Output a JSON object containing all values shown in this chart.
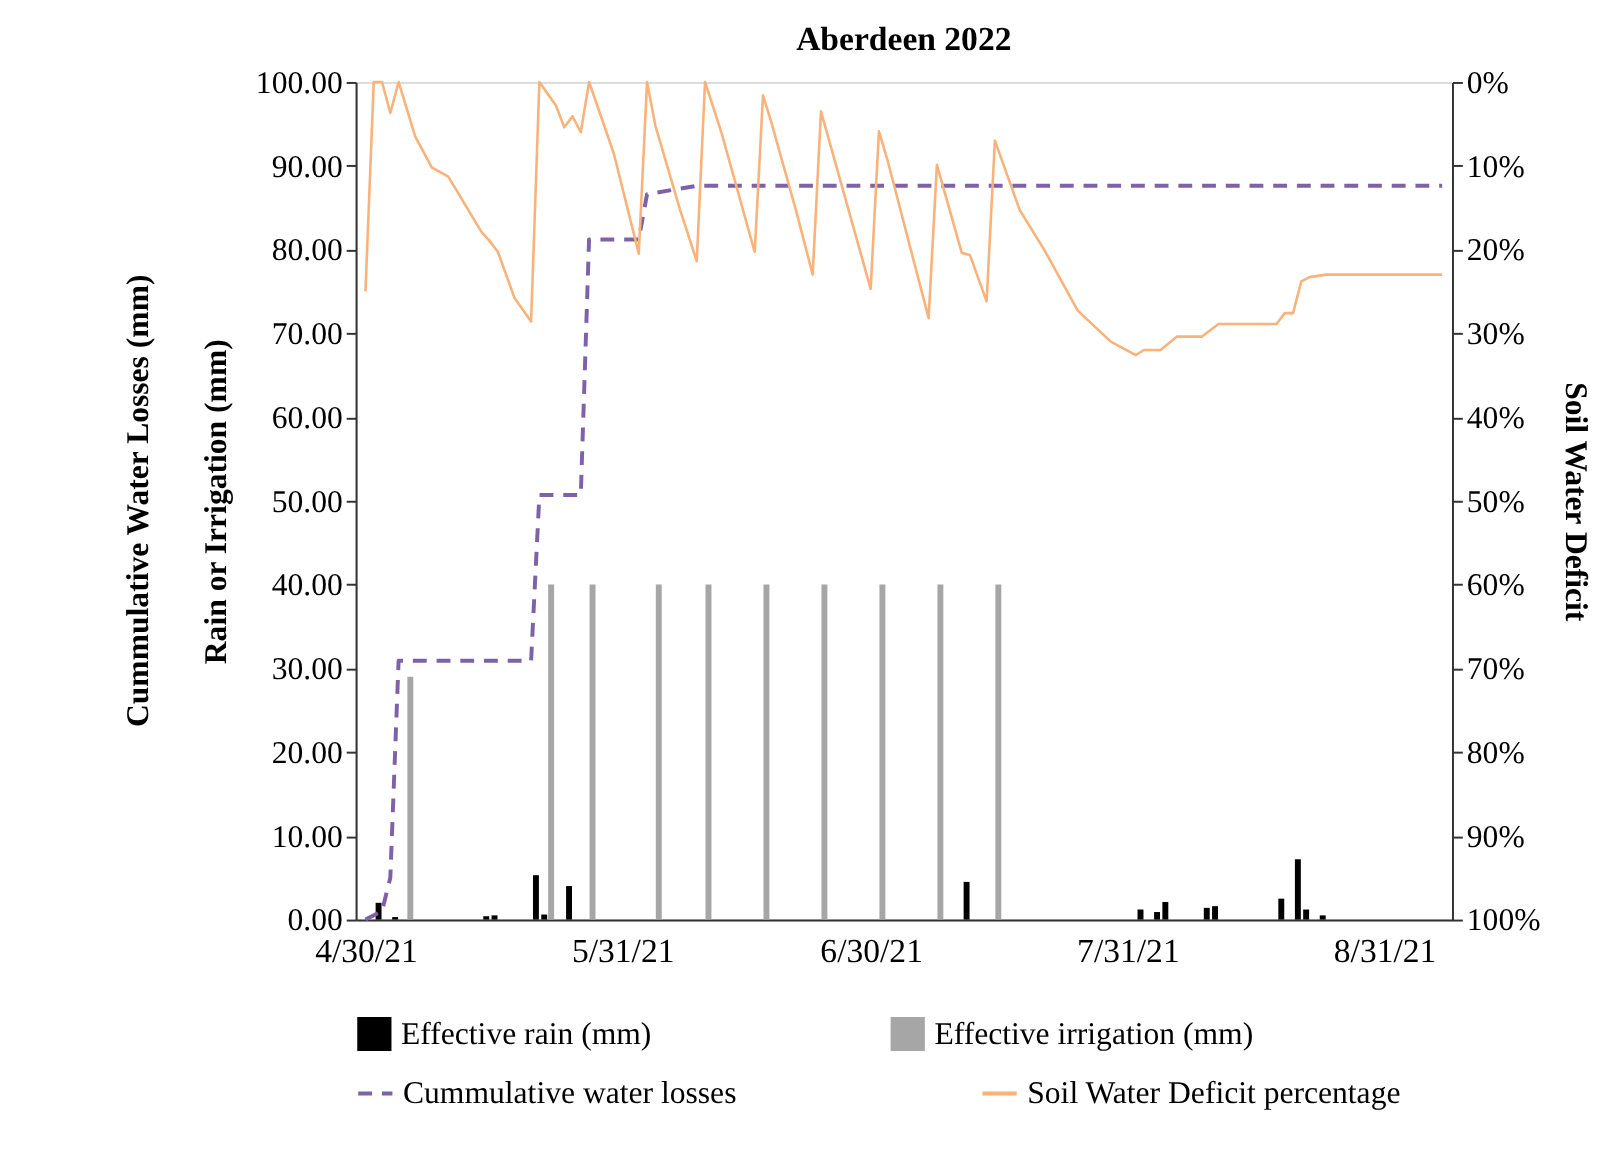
{
  "chart_data": {
    "type": "bar",
    "title": "Aberdeen 2022",
    "ylabel": "Rain or Irrigation (mm)",
    "y2label": "Soil Water Deficit",
    "annotations": [
      "Cummulative Water Losses (mm)"
    ],
    "xlim": [
      "2021-04-30",
      "2021-09-07"
    ],
    "xticks": [
      {
        "value": "2021-04-30",
        "label": "4/30/21"
      },
      {
        "value": "2021-05-31",
        "label": "5/31/21"
      },
      {
        "value": "2021-06-30",
        "label": "6/30/21"
      },
      {
        "value": "2021-07-31",
        "label": "7/31/21"
      },
      {
        "value": "2021-08-31",
        "label": "8/31/21"
      }
    ],
    "ylim": [
      0,
      100
    ],
    "yticks": [
      {
        "value": 0,
        "label": "0.00"
      },
      {
        "value": 10,
        "label": "10.00"
      },
      {
        "value": 20,
        "label": "20.00"
      },
      {
        "value": 30,
        "label": "30.00"
      },
      {
        "value": 40,
        "label": "40.00"
      },
      {
        "value": 50,
        "label": "50.00"
      },
      {
        "value": 60,
        "label": "60.00"
      },
      {
        "value": 70,
        "label": "70.00"
      },
      {
        "value": 80,
        "label": "80.00"
      },
      {
        "value": 90,
        "label": "90.00"
      },
      {
        "value": 100,
        "label": "100.00"
      }
    ],
    "y2lim": [
      100,
      0
    ],
    "y2ticks": [
      {
        "value": 0,
        "label": "0%"
      },
      {
        "value": 10,
        "label": "10%"
      },
      {
        "value": 20,
        "label": "20%"
      },
      {
        "value": 30,
        "label": "30%"
      },
      {
        "value": 40,
        "label": "40%"
      },
      {
        "value": 50,
        "label": "50%"
      },
      {
        "value": 60,
        "label": "60%"
      },
      {
        "value": 70,
        "label": "70%"
      },
      {
        "value": 80,
        "label": "80%"
      },
      {
        "value": 90,
        "label": "90%"
      },
      {
        "value": 100,
        "label": "100%"
      }
    ],
    "grid": false,
    "legend": "bottom",
    "series": [
      {
        "name": "Effective rain (mm)",
        "color": "#000000",
        "x": [
          "2021-05-02",
          "2021-05-04",
          "2021-05-15",
          "2021-05-16",
          "2021-05-21",
          "2021-05-22",
          "2021-05-25",
          "2021-07-12",
          "2021-08-02",
          "2021-08-04",
          "2021-08-05",
          "2021-08-10",
          "2021-08-11",
          "2021-08-19",
          "2021-08-21",
          "2021-08-22",
          "2021-08-24"
        ],
        "values": [
          2.0,
          0.3,
          0.4,
          0.5,
          5.3,
          0.6,
          4.0,
          4.5,
          1.2,
          0.9,
          2.1,
          1.4,
          1.6,
          2.5,
          7.2,
          1.2,
          0.5
        ]
      },
      {
        "name": "Effective irrigation (mm)",
        "color": "#a6a6a6",
        "x": [
          "2021-05-05",
          "2021-05-22",
          "2021-05-27",
          "2021-06-04",
          "2021-06-10",
          "2021-06-17",
          "2021-06-24",
          "2021-07-01",
          "2021-07-08",
          "2021-07-15"
        ],
        "values": [
          29,
          40,
          40,
          40,
          40,
          40,
          40,
          40,
          40,
          40
        ]
      },
      {
        "name": "Cummulative water losses",
        "type": "line",
        "line_style": "dashed",
        "color": "#7e62a8",
        "x": [
          "2021-04-30",
          "2021-05-02",
          "2021-05-03",
          "2021-05-04",
          "2021-05-20",
          "2021-05-21",
          "2021-05-26",
          "2021-05-27",
          "2021-06-02",
          "2021-06-03",
          "2021-06-09",
          "2021-09-07"
        ],
        "values": [
          0,
          1,
          5,
          30.9,
          30.9,
          50.7,
          50.7,
          81.2,
          81.2,
          86.6,
          87.6,
          87.6
        ]
      },
      {
        "name": "Soil Water Deficit percentage",
        "type": "line",
        "line_style": "solid",
        "axis": "y2",
        "color": "#f8b27a",
        "x": [
          "2021-04-30",
          "2021-05-01",
          "2021-05-02",
          "2021-05-03",
          "2021-05-04",
          "2021-05-06",
          "2021-05-08",
          "2021-05-10",
          "2021-05-14",
          "2021-05-15",
          "2021-05-16",
          "2021-05-18",
          "2021-05-20",
          "2021-05-21",
          "2021-05-23",
          "2021-05-24",
          "2021-05-25",
          "2021-05-26",
          "2021-05-27",
          "2021-05-29",
          "2021-05-30",
          "2021-06-02",
          "2021-06-03",
          "2021-06-04",
          "2021-06-07",
          "2021-06-09",
          "2021-06-10",
          "2021-06-12",
          "2021-06-16",
          "2021-06-17",
          "2021-06-18",
          "2021-06-21",
          "2021-06-23",
          "2021-06-24",
          "2021-06-30",
          "2021-07-01",
          "2021-07-02",
          "2021-07-07",
          "2021-07-08",
          "2021-07-11",
          "2021-07-12",
          "2021-07-14",
          "2021-07-15",
          "2021-07-18",
          "2021-07-21",
          "2021-07-25",
          "2021-07-29",
          "2021-08-01",
          "2021-08-02",
          "2021-08-04",
          "2021-08-06",
          "2021-08-09",
          "2021-08-11",
          "2021-08-18",
          "2021-08-19",
          "2021-08-20",
          "2021-08-21",
          "2021-08-22",
          "2021-08-24",
          "2021-09-07"
        ],
        "values": [
          25,
          0,
          0,
          3.7,
          0,
          6.5,
          10.2,
          11.3,
          17.9,
          19.0,
          20.3,
          25.8,
          28.6,
          0,
          2.8,
          5.4,
          4.1,
          6.0,
          0,
          5.7,
          8.6,
          20.5,
          0,
          5.2,
          15.3,
          21.4,
          0,
          6.1,
          20.3,
          1.6,
          4.8,
          15.4,
          23.0,
          3.5,
          24.7,
          5.9,
          9.2,
          28.2,
          9.9,
          20.4,
          20.7,
          26.2,
          7.0,
          15.3,
          20.1,
          27.3,
          31.0,
          32.6,
          32.0,
          32.0,
          30.4,
          30.4,
          28.9,
          28.9,
          27.6,
          27.6,
          23.8,
          23.3,
          23.0,
          23.0
        ]
      }
    ]
  }
}
